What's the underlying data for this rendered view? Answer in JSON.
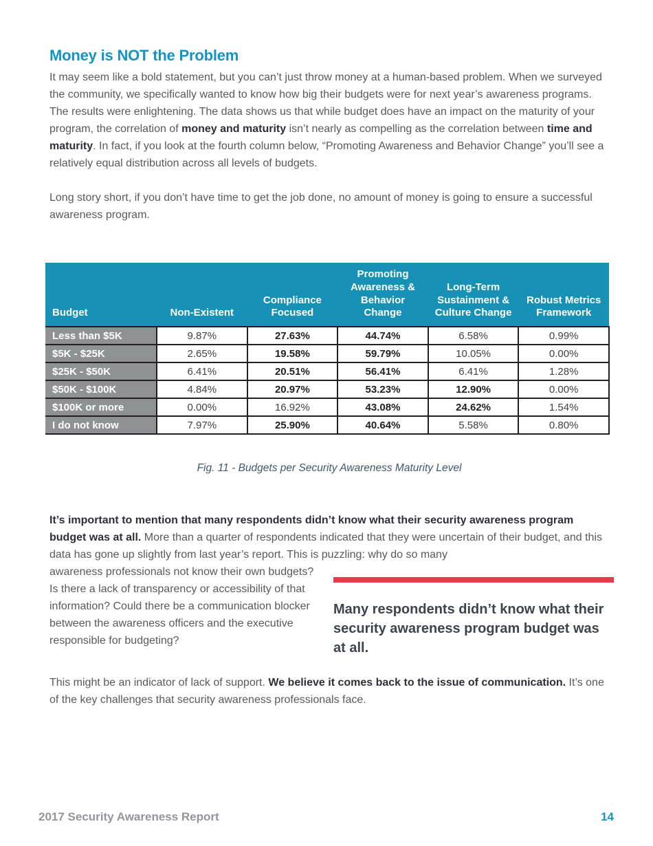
{
  "colors": {
    "heading_teal": "#1394c4",
    "table_teal": "#1791b5",
    "table_border": "#231f20",
    "row_gray": "#8f9194",
    "accent_red": "#e93a4b",
    "body_text": "#58595b",
    "strong_text": "#2e3036",
    "quote_text": "#3e434e",
    "caption_color": "#3f5968",
    "footer_gray": "#939598"
  },
  "heading": "Money is NOT the Problem",
  "intro": {
    "a": "It may seem like a bold statement, but you can’t just throw money at a human-based problem. When we surveyed the community, we specifically wanted to know how big their budgets were for next year’s awareness programs. The results were enlightening. The data shows us that while budget does have an impact on the maturity of your program, the correlation of ",
    "b_bold": "money and maturity",
    "c": " isn’t nearly as compelling as the correlation between ",
    "d_bold": "time and maturity",
    "e": ". In fact, if you look at the fourth column below, “Promoting Awareness and Behavior Change” you’ll see a relatively equal distribution across all levels of budgets."
  },
  "para2": "Long story short, if you don’t have time to get the job done, no amount of money is going to ensure a successful awareness program.",
  "table": {
    "headers": [
      "Budget",
      "Non-Existent",
      "Compliance Focused",
      "Promoting Awareness & Behavior Change",
      "Long-Term Sustainment & Culture Change",
      "Robust Metrics Framework"
    ],
    "rows": [
      {
        "label": "Less than $5K",
        "values": [
          {
            "v": "9.87%",
            "b": false
          },
          {
            "v": "27.63%",
            "b": true
          },
          {
            "v": "44.74%",
            "b": true
          },
          {
            "v": "6.58%",
            "b": false
          },
          {
            "v": "0.99%",
            "b": false
          }
        ]
      },
      {
        "label": "$5K - $25K",
        "values": [
          {
            "v": "2.65%",
            "b": false
          },
          {
            "v": "19.58%",
            "b": true
          },
          {
            "v": "59.79%",
            "b": true
          },
          {
            "v": "10.05%",
            "b": false
          },
          {
            "v": "0.00%",
            "b": false
          }
        ]
      },
      {
        "label": "$25K - $50K",
        "values": [
          {
            "v": "6.41%",
            "b": false
          },
          {
            "v": "20.51%",
            "b": true
          },
          {
            "v": "56.41%",
            "b": true
          },
          {
            "v": "6.41%",
            "b": false
          },
          {
            "v": "1.28%",
            "b": false
          }
        ]
      },
      {
        "label": "$50K - $100K",
        "values": [
          {
            "v": "4.84%",
            "b": false
          },
          {
            "v": "20.97%",
            "b": true
          },
          {
            "v": "53.23%",
            "b": true
          },
          {
            "v": "12.90%",
            "b": true
          },
          {
            "v": "0.00%",
            "b": false
          }
        ]
      },
      {
        "label": "$100K or more",
        "values": [
          {
            "v": "0.00%",
            "b": false
          },
          {
            "v": "16.92%",
            "b": false
          },
          {
            "v": "43.08%",
            "b": true
          },
          {
            "v": "24.62%",
            "b": true
          },
          {
            "v": "1.54%",
            "b": false
          }
        ]
      },
      {
        "label": "I do not know",
        "values": [
          {
            "v": "7.97%",
            "b": false
          },
          {
            "v": "25.90%",
            "b": true
          },
          {
            "v": "40.64%",
            "b": true
          },
          {
            "v": "5.58%",
            "b": false
          },
          {
            "v": "0.80%",
            "b": false
          }
        ]
      }
    ]
  },
  "caption": "Fig. 11 - Budgets per Security Awareness Maturity Level",
  "discussion": {
    "bold_intro": "It’s important to mention that many respondents didn’t know what their security awareness program budget was at all.",
    "text_top": " More than a quarter of respondents indicated that they were uncertain of their budget, and this data has gone up slightly from last year’s report. This is puzzling: why do so many",
    "text_left": "awareness professionals not know their own budgets? Is there a lack of transparency or accessibility of that information? Could there be a communication blocker between the awareness officers and the executive responsible for budgeting?"
  },
  "pull_quote": "Many respondents didn’t know what their security awareness program budget was at all.",
  "closing": {
    "pre": "This might be an indicator of lack of support. ",
    "bold": "We believe it comes back to the issue of communication.",
    "post": " It’s one of the key challenges that security awareness professionals face."
  },
  "footer": {
    "left": "2017 Security Awareness Report",
    "page_number": "14"
  }
}
